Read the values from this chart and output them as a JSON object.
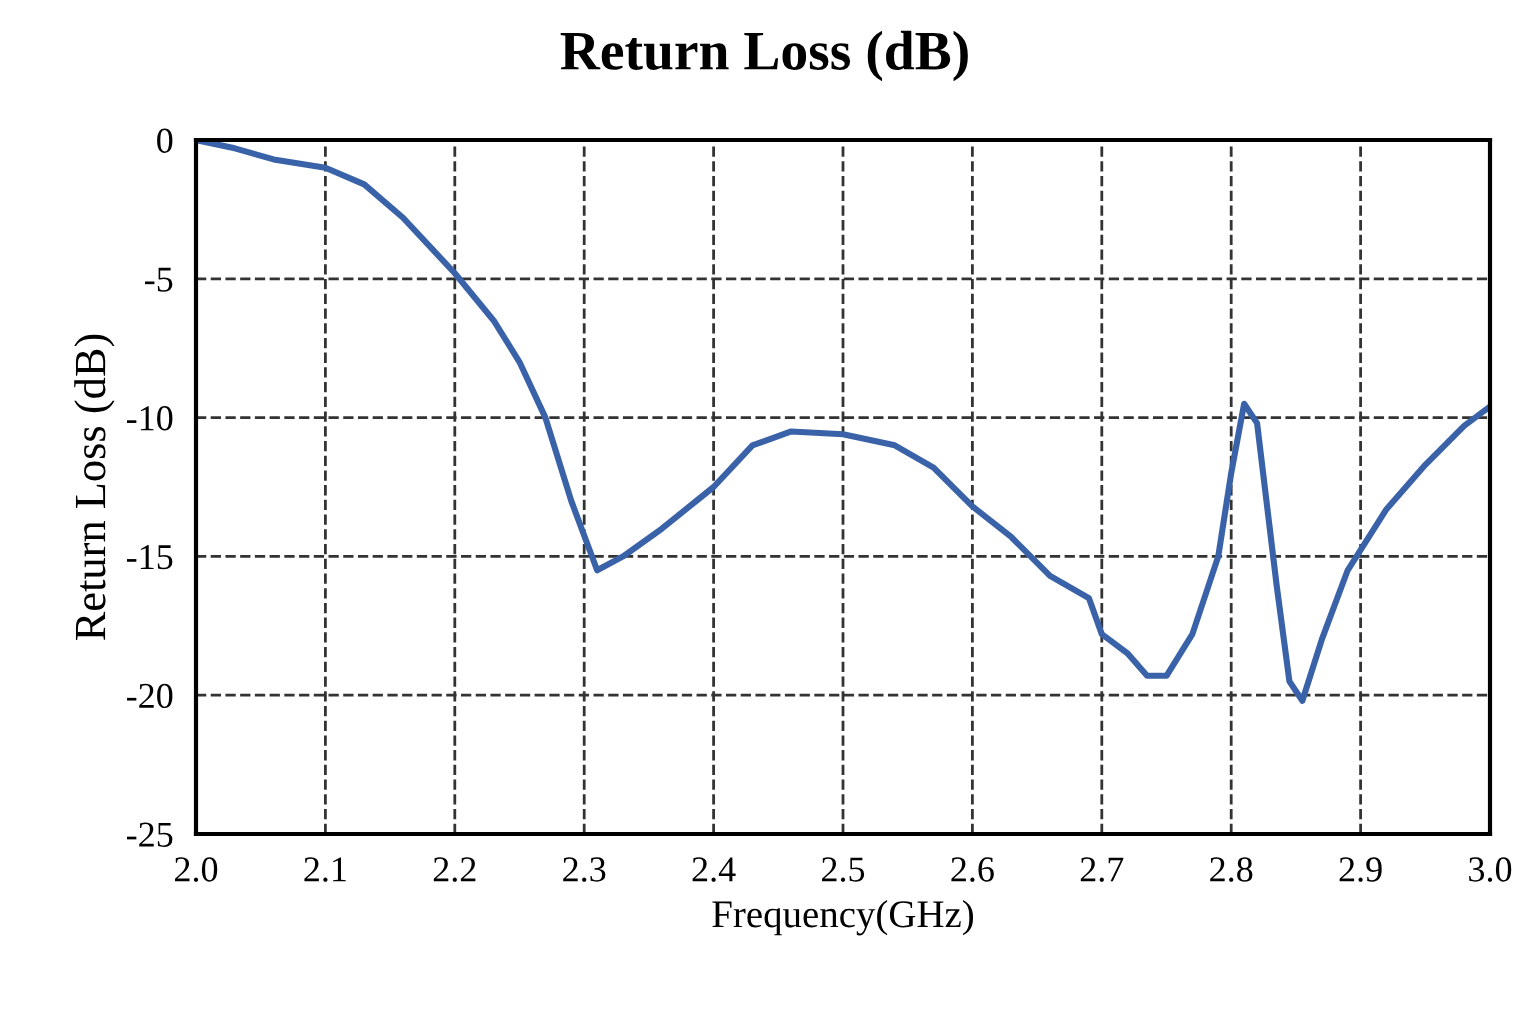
{
  "chart_data": {
    "type": "line",
    "title": "Return Loss (dB)",
    "xlabel": "Frequency(GHz)",
    "ylabel": "Return Loss (dB)",
    "x": [
      2.0,
      2.03,
      2.06,
      2.1,
      2.13,
      2.16,
      2.2,
      2.23,
      2.25,
      2.27,
      2.29,
      2.31,
      2.33,
      2.36,
      2.4,
      2.43,
      2.46,
      2.5,
      2.54,
      2.57,
      2.6,
      2.63,
      2.66,
      2.69,
      2.7,
      2.72,
      2.735,
      2.75,
      2.77,
      2.79,
      2.8,
      2.81,
      2.82,
      2.835,
      2.845,
      2.855,
      2.87,
      2.89,
      2.92,
      2.95,
      2.98,
      3.0
    ],
    "series": [
      {
        "color": "#3a62a8",
        "values": [
          0,
          -0.3,
          -0.7,
          -1.0,
          -1.6,
          -2.8,
          -4.8,
          -6.5,
          -8.0,
          -10.0,
          -13.0,
          -15.5,
          -15.0,
          -14.0,
          -12.5,
          -11.0,
          -10.5,
          -10.6,
          -11.0,
          -11.8,
          -13.2,
          -14.3,
          -15.7,
          -16.5,
          -17.8,
          -18.5,
          -19.3,
          -19.3,
          -17.8,
          -15.0,
          -12.0,
          -9.5,
          -10.2,
          -16.0,
          -19.5,
          -20.2,
          -18.0,
          -15.5,
          -13.3,
          -11.7,
          -10.3,
          -9.6
        ]
      }
    ],
    "xlim": [
      2.0,
      3.0
    ],
    "xticks": [
      {
        "value": 2.0,
        "label": "2.0"
      },
      2.1,
      2.2,
      2.3,
      2.4,
      2.5,
      2.6,
      2.7,
      2.8,
      2.9,
      {
        "value": 3.0,
        "label": "3.0"
      }
    ],
    "ylim": [
      -25,
      0
    ],
    "yticks": [
      -25,
      -20,
      -15,
      -10,
      -5,
      0
    ],
    "grid": true,
    "line_style": "solid",
    "marker": "none"
  }
}
